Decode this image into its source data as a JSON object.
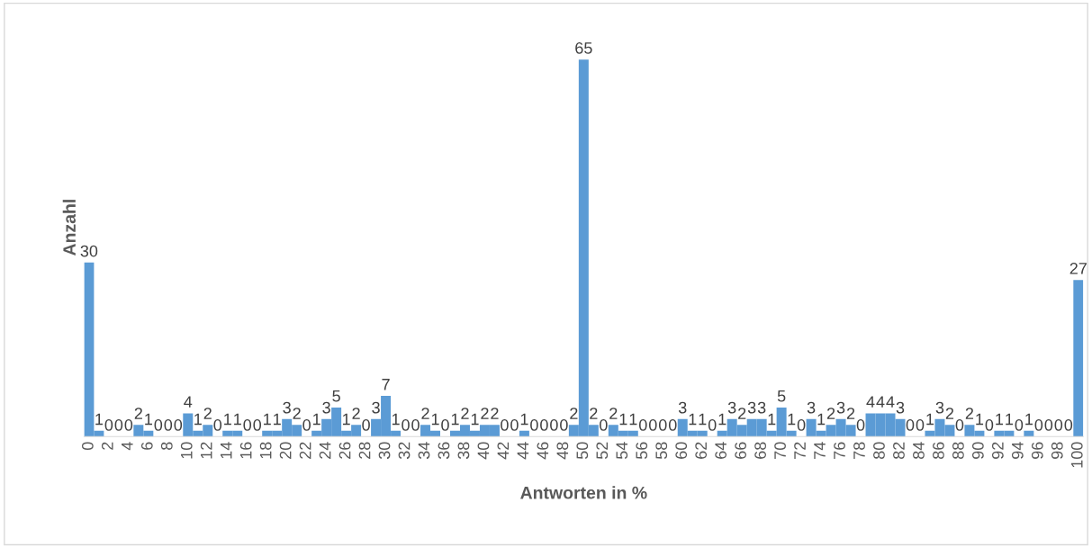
{
  "chart_data": {
    "type": "bar",
    "xlabel": "Antworten in %",
    "ylabel": "Anzahl",
    "categories": [
      "0",
      null,
      "2",
      null,
      "4",
      null,
      "6",
      null,
      "8",
      null,
      "10",
      null,
      "12",
      null,
      "14",
      null,
      "16",
      null,
      "18",
      null,
      "20",
      null,
      "22",
      null,
      "24",
      null,
      "26",
      null,
      "28",
      null,
      "30",
      null,
      "32",
      null,
      "34",
      null,
      "36",
      null,
      "38",
      null,
      "40",
      null,
      "42",
      null,
      "44",
      null,
      "46",
      null,
      "48",
      null,
      "50",
      null,
      "52",
      null,
      "54",
      null,
      "56",
      null,
      "58",
      null,
      "60",
      null,
      "62",
      null,
      "64",
      null,
      "66",
      null,
      "68",
      null,
      "70",
      null,
      "72",
      null,
      "74",
      null,
      "76",
      null,
      "78",
      null,
      "80",
      null,
      "82",
      null,
      "84",
      null,
      "86",
      null,
      "88",
      null,
      "90",
      null,
      "92",
      null,
      "94",
      null,
      "96",
      null,
      "98",
      null,
      "100"
    ],
    "values": [
      30,
      1,
      0,
      0,
      0,
      2,
      1,
      0,
      0,
      0,
      4,
      1,
      2,
      0,
      1,
      1,
      0,
      0,
      1,
      1,
      3,
      2,
      0,
      1,
      3,
      5,
      1,
      2,
      0,
      3,
      7,
      1,
      0,
      0,
      2,
      1,
      0,
      1,
      2,
      1,
      2,
      2,
      0,
      0,
      1,
      0,
      0,
      0,
      0,
      2,
      65,
      2,
      0,
      2,
      1,
      1,
      0,
      0,
      0,
      0,
      3,
      1,
      1,
      0,
      1,
      3,
      2,
      3,
      3,
      1,
      5,
      1,
      0,
      3,
      1,
      2,
      3,
      2,
      0,
      4,
      4,
      4,
      3,
      0,
      0,
      1,
      3,
      2,
      0,
      2,
      1,
      0,
      1,
      1,
      0,
      1,
      0,
      0,
      0,
      0,
      27
    ],
    "color": "#5b9bd5",
    "data_labels": true,
    "grid": false,
    "legend": false,
    "tick_labels": "x"
  }
}
